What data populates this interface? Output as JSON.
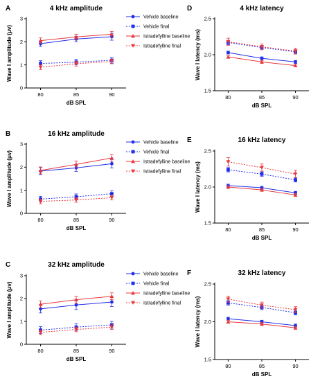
{
  "chart_data": [
    {
      "type": "line",
      "letter": "A",
      "title": "4 kHz amplitude",
      "xlabel": "dB SPL",
      "ylabel": "Wave I amplitude (μv)",
      "x": [
        80,
        85,
        90
      ],
      "xticks": [
        "80",
        "85",
        "90"
      ],
      "ylim": [
        0,
        3
      ],
      "yticks": [
        0,
        1,
        2,
        3
      ],
      "ytick_labels": [
        "0",
        "1",
        "2",
        "3"
      ],
      "legend": "top-right",
      "series": [
        {
          "name": "Vehicle baseline",
          "values": [
            1.92,
            2.12,
            2.22
          ],
          "err": [
            0.12,
            0.12,
            0.15
          ],
          "color": "#1f2ee8",
          "dash": "solid",
          "marker": "circle"
        },
        {
          "name": "Vehicle final",
          "values": [
            1.06,
            1.12,
            1.2
          ],
          "err": [
            0.12,
            0.12,
            0.12
          ],
          "color": "#1f2ee8",
          "dash": "dotted",
          "marker": "square"
        },
        {
          "name": "Istradefylline baseline",
          "values": [
            2.05,
            2.21,
            2.33
          ],
          "err": [
            0.12,
            0.12,
            0.12
          ],
          "color": "#e8373b",
          "dash": "solid",
          "marker": "triangle"
        },
        {
          "name": "Istradefylline final",
          "values": [
            0.9,
            1.05,
            1.15
          ],
          "err": [
            0.1,
            0.1,
            0.1
          ],
          "color": "#e8373b",
          "dash": "dotted",
          "marker": "triangle-down"
        }
      ]
    },
    {
      "type": "line",
      "letter": "D",
      "title": "4 kHz latency",
      "xlabel": "dB SPL",
      "ylabel": "Wave I latency (ms)",
      "x": [
        80,
        85,
        90
      ],
      "xticks": [
        "80",
        "85",
        "90"
      ],
      "ylim": [
        1.5,
        2.5
      ],
      "yticks": [
        1.5,
        2.0,
        2.5
      ],
      "ytick_labels": [
        "1.5",
        "2.0",
        "2.5"
      ],
      "legend": "",
      "series": [
        {
          "name": "Vehicle baseline",
          "values": [
            2.03,
            1.95,
            1.9
          ],
          "err": [
            0.02,
            0.02,
            0.02
          ],
          "color": "#1f2ee8",
          "dash": "solid",
          "marker": "circle"
        },
        {
          "name": "Vehicle final",
          "values": [
            2.17,
            2.1,
            2.04
          ],
          "err": [
            0.03,
            0.03,
            0.03
          ],
          "color": "#1f2ee8",
          "dash": "dotted",
          "marker": "square"
        },
        {
          "name": "Istradefylline baseline",
          "values": [
            1.97,
            1.9,
            1.85
          ],
          "err": [
            0.02,
            0.02,
            0.02
          ],
          "color": "#e8373b",
          "dash": "solid",
          "marker": "triangle"
        },
        {
          "name": "Istradefylline final",
          "values": [
            2.18,
            2.11,
            2.05
          ],
          "err": [
            0.05,
            0.04,
            0.04
          ],
          "color": "#e8373b",
          "dash": "dotted",
          "marker": "triangle-down"
        }
      ]
    },
    {
      "type": "line",
      "letter": "B",
      "title": "16 kHz amplitude",
      "xlabel": "dB SPL",
      "ylabel": "Wave I amplitude (μv)",
      "x": [
        80,
        85,
        90
      ],
      "xticks": [
        "80",
        "85",
        "90"
      ],
      "ylim": [
        0,
        3
      ],
      "yticks": [
        0,
        1,
        2,
        3
      ],
      "ytick_labels": [
        "0",
        "1",
        "2",
        "3"
      ],
      "legend": "top-right",
      "series": [
        {
          "name": "Vehicle baseline",
          "values": [
            1.83,
            1.97,
            2.15
          ],
          "err": [
            0.15,
            0.15,
            0.18
          ],
          "color": "#1f2ee8",
          "dash": "solid",
          "marker": "circle"
        },
        {
          "name": "Vehicle final",
          "values": [
            0.62,
            0.72,
            0.85
          ],
          "err": [
            0.12,
            0.12,
            0.12
          ],
          "color": "#1f2ee8",
          "dash": "dotted",
          "marker": "square"
        },
        {
          "name": "Istradefylline baseline",
          "values": [
            1.86,
            2.12,
            2.4
          ],
          "err": [
            0.15,
            0.15,
            0.15
          ],
          "color": "#e8373b",
          "dash": "solid",
          "marker": "triangle"
        },
        {
          "name": "Istradefylline final",
          "values": [
            0.52,
            0.58,
            0.68
          ],
          "err": [
            0.1,
            0.1,
            0.1
          ],
          "color": "#e8373b",
          "dash": "dotted",
          "marker": "triangle-down"
        }
      ]
    },
    {
      "type": "line",
      "letter": "E",
      "title": "16 kHz latency",
      "xlabel": "dB SPL",
      "ylabel": "Wave I latency (ms)",
      "x": [
        80,
        85,
        90
      ],
      "xticks": [
        "80",
        "85",
        "90"
      ],
      "ylim": [
        1.5,
        2.5
      ],
      "yticks": [
        1.5,
        2.0,
        2.5
      ],
      "ytick_labels": [
        "1.5",
        "2.0",
        "2.5"
      ],
      "legend": "",
      "series": [
        {
          "name": "Vehicle baseline",
          "values": [
            2.02,
            1.99,
            1.92
          ],
          "err": [
            0.02,
            0.02,
            0.02
          ],
          "color": "#1f2ee8",
          "dash": "solid",
          "marker": "circle"
        },
        {
          "name": "Vehicle final",
          "values": [
            2.24,
            2.18,
            2.1
          ],
          "err": [
            0.03,
            0.03,
            0.03
          ],
          "color": "#1f2ee8",
          "dash": "dotted",
          "marker": "square"
        },
        {
          "name": "Istradefylline baseline",
          "values": [
            2.0,
            1.96,
            1.89
          ],
          "err": [
            0.02,
            0.02,
            0.02
          ],
          "color": "#e8373b",
          "dash": "solid",
          "marker": "triangle"
        },
        {
          "name": "Istradefylline final",
          "values": [
            2.35,
            2.27,
            2.18
          ],
          "err": [
            0.06,
            0.05,
            0.05
          ],
          "color": "#e8373b",
          "dash": "dotted",
          "marker": "triangle-down"
        }
      ]
    },
    {
      "type": "line",
      "letter": "C",
      "title": "32 kHz amplitude",
      "xlabel": "dB SPL",
      "ylabel": "Wave I amplitude (μv)",
      "x": [
        80,
        85,
        90
      ],
      "xticks": [
        "80",
        "85",
        "90"
      ],
      "ylim": [
        0,
        3
      ],
      "yticks": [
        0,
        1,
        2,
        3
      ],
      "ytick_labels": [
        "0",
        "1",
        "2",
        "3"
      ],
      "legend": "top-right",
      "series": [
        {
          "name": "Vehicle baseline",
          "values": [
            1.55,
            1.72,
            1.85
          ],
          "err": [
            0.18,
            0.2,
            0.2
          ],
          "color": "#1f2ee8",
          "dash": "solid",
          "marker": "circle"
        },
        {
          "name": "Vehicle final",
          "values": [
            0.62,
            0.75,
            0.85
          ],
          "err": [
            0.15,
            0.15,
            0.15
          ],
          "color": "#1f2ee8",
          "dash": "dotted",
          "marker": "square"
        },
        {
          "name": "Istradefylline baseline",
          "values": [
            1.75,
            1.95,
            2.1
          ],
          "err": [
            0.15,
            0.15,
            0.15
          ],
          "color": "#e8373b",
          "dash": "solid",
          "marker": "triangle"
        },
        {
          "name": "Istradefylline final",
          "values": [
            0.52,
            0.65,
            0.75
          ],
          "err": [
            0.1,
            0.1,
            0.1
          ],
          "color": "#e8373b",
          "dash": "dotted",
          "marker": "triangle-down"
        }
      ]
    },
    {
      "type": "line",
      "letter": "F",
      "title": "32 kHz latency",
      "xlabel": "dB SPL",
      "ylabel": "Wave I latency (ms)",
      "x": [
        80,
        85,
        90
      ],
      "xticks": [
        "80",
        "85",
        "90"
      ],
      "ylim": [
        1.5,
        2.5
      ],
      "yticks": [
        1.5,
        2.0,
        2.5
      ],
      "ytick_labels": [
        "1.5",
        "2.0",
        "2.5"
      ],
      "legend": "",
      "series": [
        {
          "name": "Vehicle baseline",
          "values": [
            2.04,
            2.0,
            1.95
          ],
          "err": [
            0.02,
            0.02,
            0.02
          ],
          "color": "#1f2ee8",
          "dash": "solid",
          "marker": "circle"
        },
        {
          "name": "Vehicle final",
          "values": [
            2.25,
            2.19,
            2.12
          ],
          "err": [
            0.03,
            0.03,
            0.03
          ],
          "color": "#1f2ee8",
          "dash": "dotted",
          "marker": "square"
        },
        {
          "name": "Istradefylline baseline",
          "values": [
            2.0,
            1.97,
            1.92
          ],
          "err": [
            0.02,
            0.02,
            0.02
          ],
          "color": "#e8373b",
          "dash": "solid",
          "marker": "triangle"
        },
        {
          "name": "Istradefylline final",
          "values": [
            2.3,
            2.22,
            2.16
          ],
          "err": [
            0.04,
            0.04,
            0.04
          ],
          "color": "#e8373b",
          "dash": "dotted",
          "marker": "triangle-down"
        }
      ]
    }
  ]
}
